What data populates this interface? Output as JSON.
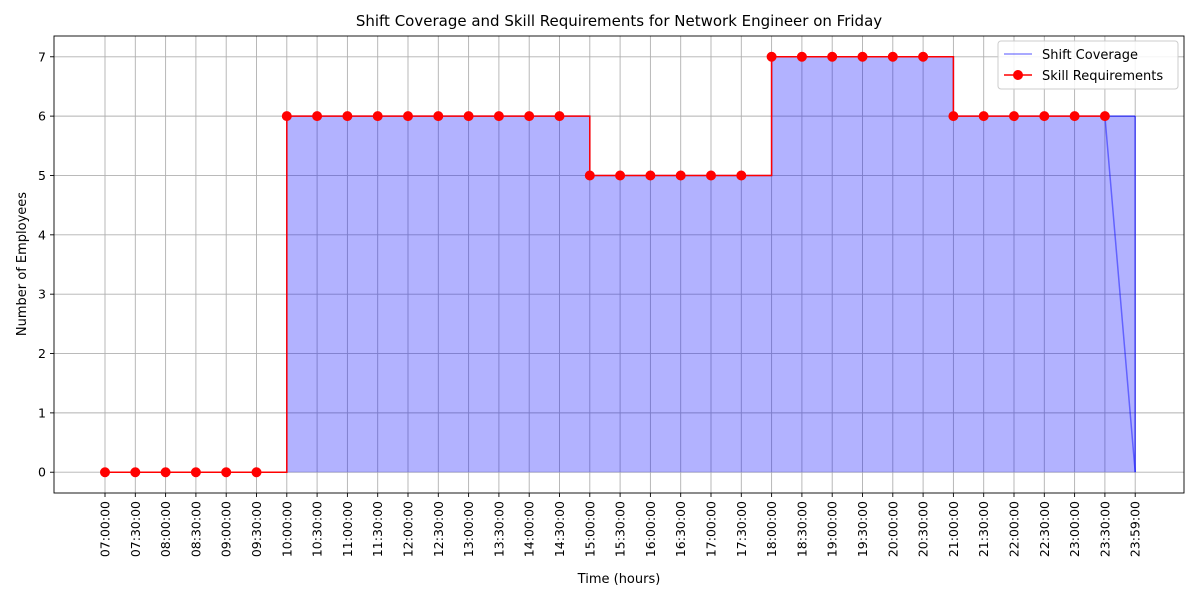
{
  "chart_data": {
    "type": "line",
    "title": "Shift Coverage and Skill Requirements for Network Engineer on Friday",
    "xlabel": "Time (hours)",
    "ylabel": "Number of Employees",
    "categories": [
      "07:00:00",
      "07:30:00",
      "08:00:00",
      "08:30:00",
      "09:00:00",
      "09:30:00",
      "10:00:00",
      "10:30:00",
      "11:00:00",
      "11:30:00",
      "12:00:00",
      "12:30:00",
      "13:00:00",
      "13:30:00",
      "14:00:00",
      "14:30:00",
      "15:00:00",
      "15:30:00",
      "16:00:00",
      "16:30:00",
      "17:00:00",
      "17:30:00",
      "18:00:00",
      "18:30:00",
      "19:00:00",
      "19:30:00",
      "20:00:00",
      "20:30:00",
      "21:00:00",
      "21:30:00",
      "22:00:00",
      "22:30:00",
      "23:00:00",
      "23:30:00",
      "23:59:00"
    ],
    "ylim": [
      -0.35,
      7.35
    ],
    "yticks": [
      0,
      1,
      2,
      3,
      4,
      5,
      6,
      7
    ],
    "grid": true,
    "legend_position": "top-right",
    "series": [
      {
        "name": "Shift Coverage",
        "kind": "filled-line",
        "color": "#0000ff",
        "values": [
          0,
          0,
          0,
          0,
          0,
          0,
          6,
          6,
          6,
          6,
          6,
          6,
          6,
          6,
          6,
          6,
          5,
          5,
          5,
          5,
          5,
          5,
          7,
          7,
          7,
          7,
          7,
          7,
          6,
          6,
          6,
          6,
          6,
          6,
          0
        ]
      },
      {
        "name": "Skill Requirements",
        "kind": "step-markers",
        "color": "#ff0000",
        "values": [
          0,
          0,
          0,
          0,
          0,
          0,
          6,
          6,
          6,
          6,
          6,
          6,
          6,
          6,
          6,
          6,
          5,
          5,
          5,
          5,
          5,
          5,
          7,
          7,
          7,
          7,
          7,
          7,
          6,
          6,
          6,
          6,
          6,
          6,
          6
        ]
      }
    ]
  }
}
